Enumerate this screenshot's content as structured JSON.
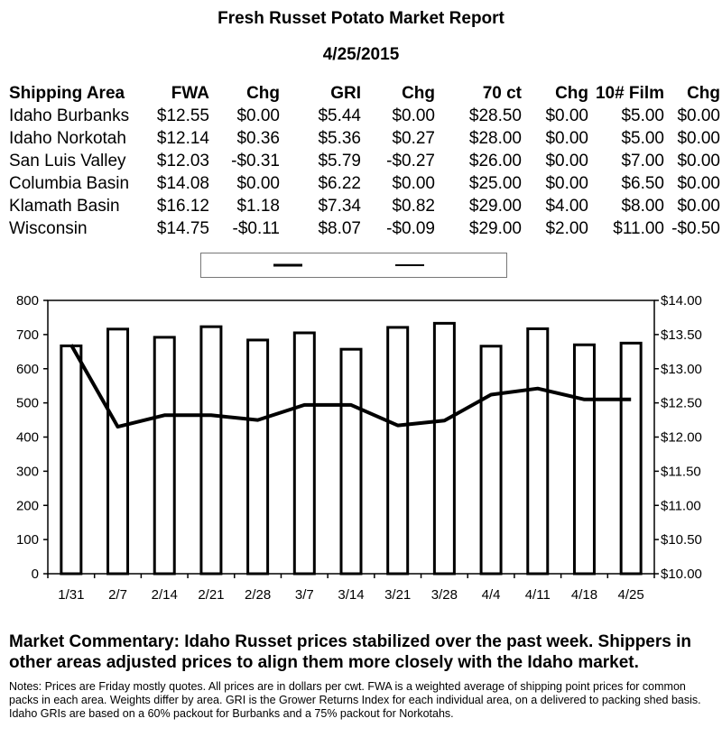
{
  "report": {
    "title": "Fresh Russet Potato Market Report",
    "date": "4/25/2015"
  },
  "table": {
    "headers": [
      "Shipping Area",
      "FWA",
      "Chg",
      "GRI",
      "Chg",
      "70 ct",
      "Chg",
      "10# Film",
      "Chg"
    ],
    "rows": [
      [
        "Idaho Burbanks",
        "$12.55",
        "$0.00",
        "$5.44",
        "$0.00",
        "$28.50",
        "$0.00",
        "$5.00",
        "$0.00"
      ],
      [
        "Idaho Norkotah",
        "$12.14",
        "$0.36",
        "$5.36",
        "$0.27",
        "$28.00",
        "$0.00",
        "$5.00",
        "$0.00"
      ],
      [
        "San Luis Valley",
        "$12.03",
        "-$0.31",
        "$5.79",
        "-$0.27",
        "$26.00",
        "$0.00",
        "$7.00",
        "$0.00"
      ],
      [
        "Columbia Basin",
        "$14.08",
        "$0.00",
        "$6.22",
        "$0.00",
        "$25.00",
        "$0.00",
        "$6.50",
        "$0.00"
      ],
      [
        "Klamath Basin",
        "$16.12",
        "$1.18",
        "$7.34",
        "$0.82",
        "$29.00",
        "$4.00",
        "$8.00",
        "$0.00"
      ],
      [
        "Wisconsin",
        "$14.75",
        "-$0.11",
        "$8.07",
        "-$0.09",
        "$29.00",
        "$2.00",
        "$11.00",
        "-$0.50"
      ]
    ]
  },
  "chart_data": {
    "type": "bar",
    "categories": [
      "1/31",
      "2/7",
      "2/14",
      "2/21",
      "2/28",
      "3/7",
      "3/14",
      "3/21",
      "3/28",
      "4/4",
      "4/11",
      "4/18",
      "4/25"
    ],
    "series": [
      {
        "kind": "bar",
        "axis": "left",
        "values": [
          667,
          716,
          692,
          723,
          684,
          705,
          657,
          721,
          733,
          666,
          717,
          670,
          675
        ]
      },
      {
        "kind": "line",
        "axis": "right",
        "values": [
          13.35,
          12.15,
          12.32,
          12.32,
          12.25,
          12.47,
          12.47,
          12.17,
          12.24,
          12.62,
          12.71,
          12.55,
          12.55
        ]
      }
    ],
    "y_left": {
      "min": 0,
      "max": 800,
      "step": 100,
      "tick_labels": [
        "0",
        "100",
        "200",
        "300",
        "400",
        "500",
        "600",
        "700",
        "800"
      ]
    },
    "y_right": {
      "min": 10,
      "max": 14,
      "step": 0.5,
      "tick_labels": [
        "$10.00",
        "$10.50",
        "$11.00",
        "$11.50",
        "$12.00",
        "$12.50",
        "$13.00",
        "$13.50",
        "$14.00"
      ]
    },
    "legend": {
      "placement": "top"
    },
    "grid": false
  },
  "commentary": "Market Commentary: Idaho Russet prices stabilized over the past week. Shippers in other areas adjusted prices to align them more closely with the Idaho market.",
  "notes": "Notes: Prices are Friday mostly quotes. All prices are in dollars per cwt. FWA is a weighted average of shipping point prices for common packs in each area. Weights differ by area. GRI is the Grower Returns Index for each individual area, on a delivered to packing shed basis. Idaho GRIs are based on a 60% packout for Burbanks and a 75% packout for Norkotahs."
}
